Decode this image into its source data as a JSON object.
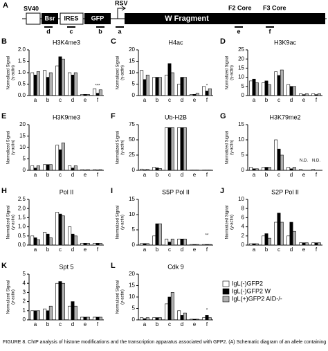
{
  "diagram": {
    "panel": "A",
    "labels": {
      "sv40": "SV40",
      "bsr": "Bsr",
      "ires": "IRES",
      "gfp": "GFP",
      "rsv": "RSV",
      "wfrag": "W Fragment",
      "f2": "F2 Core",
      "f3": "F3 Core"
    },
    "primers": [
      "d",
      "c",
      "b",
      "a",
      "e",
      "f"
    ]
  },
  "legend": [
    {
      "name": "IgL(-)GFP2",
      "color": "#ffffff"
    },
    {
      "name": "IgL(-)GFP2 W",
      "color": "#000000"
    },
    {
      "name": "IgL(+)GFP2 AID-/-",
      "color": "#b0b0b0"
    }
  ],
  "caption": "FIGURE 8. ChIP analysis of histone modifications and the transcription apparatus associated with GFP2. (A) Schematic diagram of an allele containing",
  "chart_data": [
    {
      "type": "bar",
      "panel": "B",
      "title": "H3K4me3",
      "ylabel": [
        "Normalized Signal",
        "(γ-actin)"
      ],
      "categories": [
        "a",
        "b",
        "c",
        "d",
        "e",
        "f"
      ],
      "ylim": [
        0,
        2
      ],
      "yticks": [
        {
          "value": 0,
          "label": "0.0"
        },
        0.5,
        {
          "value": 1,
          "label": "1.0"
        },
        1.5,
        {
          "value": 2,
          "label": "2.0"
        }
      ],
      "annotations": [
        "***"
      ],
      "series": [
        {
          "values": [
            1.0,
            1.1,
            1.3,
            1.0,
            0.05,
            0.3
          ]
        },
        {
          "values": [
            0.9,
            0.8,
            1.7,
            0.9,
            0.05,
            0.1
          ]
        },
        {
          "values": [
            1.05,
            1.0,
            1.6,
            1.0,
            0.05,
            0.25
          ]
        }
      ]
    },
    {
      "type": "bar",
      "panel": "C",
      "title": "H4ac",
      "ylabel": [
        "Normalized Signal",
        "(γ-actin)"
      ],
      "categories": [
        "a",
        "b",
        "c",
        "d",
        "e",
        "f"
      ],
      "ylim": [
        0,
        20
      ],
      "yticks": [
        0,
        5,
        10,
        15,
        20
      ],
      "annotations": [
        "*"
      ],
      "series": [
        {
          "values": [
            11,
            8,
            9,
            5,
            0.5,
            4
          ]
        },
        {
          "values": [
            7,
            8,
            14,
            8,
            0.5,
            2
          ]
        },
        {
          "values": [
            9,
            8,
            10,
            8,
            1,
            3
          ]
        }
      ]
    },
    {
      "type": "bar",
      "panel": "D",
      "title": "H3K9ac",
      "ylabel": [
        "Normalized Signal",
        "(γ-actin)"
      ],
      "categories": [
        "a",
        "b",
        "c",
        "d",
        "e",
        "f"
      ],
      "ylim": [
        0,
        25
      ],
      "yticks": [
        0,
        5,
        10,
        15,
        20,
        25
      ],
      "annotations": [],
      "series": [
        {
          "values": [
            8,
            7,
            13,
            6,
            1,
            1
          ]
        },
        {
          "values": [
            9,
            8,
            11,
            5,
            0.5,
            0.5
          ]
        },
        {
          "values": [
            7,
            6,
            14,
            5,
            1,
            1
          ]
        }
      ]
    },
    {
      "type": "bar",
      "panel": "E",
      "title": "H3K9me3",
      "ylabel": [
        "Normalized Signal",
        "(γ-actin)"
      ],
      "categories": [
        "a",
        "b",
        "c",
        "d",
        "e",
        "f"
      ],
      "ylim": [
        0,
        20
      ],
      "yticks": [
        0,
        5,
        10,
        15,
        20
      ],
      "annotations": [],
      "series": [
        {
          "values": [
            2,
            2.5,
            11,
            2,
            0.3,
            0.3
          ]
        },
        {
          "values": [
            1,
            2.5,
            9,
            1,
            0.2,
            0.2
          ]
        },
        {
          "values": [
            2,
            2.5,
            12,
            2,
            0.3,
            0.3
          ]
        }
      ]
    },
    {
      "type": "bar",
      "panel": "F",
      "title": "Ub-H2B",
      "ylabel": [
        "Normalized Signal",
        "(γ-actin)"
      ],
      "categories": [
        "a",
        "b",
        "c",
        "d",
        "e",
        "f"
      ],
      "ylim": [
        0,
        75
      ],
      "yticks": [
        0,
        25,
        50,
        75
      ],
      "annotations": [],
      "series": [
        {
          "values": [
            2,
            5,
            70,
            70,
            0.5,
            0.5
          ]
        },
        {
          "values": [
            1,
            4,
            70,
            70,
            0.5,
            0.5
          ]
        },
        {
          "values": [
            1.5,
            3,
            70,
            70,
            0.5,
            0.5
          ]
        }
      ]
    },
    {
      "type": "bar",
      "panel": "G",
      "title": "H3K79me2",
      "ylabel": [
        "Normalized Signal",
        "(γ-actin)"
      ],
      "categories": [
        "a",
        "b",
        "c",
        "d",
        "e",
        "f"
      ],
      "ylim": [
        0,
        15
      ],
      "yticks": [
        0,
        5,
        10,
        15
      ],
      "annotations": [
        "N.D.",
        "N.D."
      ],
      "series": [
        {
          "values": [
            1,
            1,
            10,
            1,
            0.3,
            0.3
          ]
        },
        {
          "values": [
            0.5,
            1,
            7,
            0.5,
            null,
            null
          ]
        },
        {
          "values": [
            0.5,
            1,
            5,
            1,
            null,
            null
          ]
        }
      ]
    },
    {
      "type": "bar",
      "panel": "H",
      "title": "Pol II",
      "ylabel": [
        "Normalized Signal",
        "(γ-actin)"
      ],
      "categories": [
        "a",
        "b",
        "c",
        "d",
        "e",
        "f"
      ],
      "ylim": [
        0,
        2.5
      ],
      "yticks": [
        {
          "value": 0,
          "label": "0.0"
        },
        0.5,
        {
          "value": 1,
          "label": "1.0"
        },
        1.5,
        {
          "value": 2,
          "label": "2.0"
        },
        2.5
      ],
      "annotations": [],
      "series": [
        {
          "values": [
            0.5,
            0.7,
            1.8,
            1.0,
            0.1,
            0.1
          ]
        },
        {
          "values": [
            0.4,
            0.6,
            1.7,
            0.6,
            0.1,
            0.1
          ]
        },
        {
          "values": [
            0.3,
            0.4,
            1.6,
            0.5,
            0.1,
            0.1
          ]
        }
      ]
    },
    {
      "type": "bar",
      "panel": "I",
      "title": "S5P Pol II",
      "ylabel": [
        "Normalized Signal",
        "(γ-actin)"
      ],
      "categories": [
        "a",
        "b",
        "c",
        "d",
        "e",
        "f"
      ],
      "ylim": [
        0,
        15
      ],
      "yticks": [
        0,
        5,
        10,
        15
      ],
      "annotations": [
        "**"
      ],
      "series": [
        {
          "values": [
            0.5,
            3,
            2,
            2,
            0.2,
            0.2
          ]
        },
        {
          "values": [
            0.5,
            7,
            1,
            2,
            0.2,
            0.2
          ]
        },
        {
          "values": [
            0.5,
            7,
            2,
            2,
            0.2,
            0.2
          ]
        }
      ]
    },
    {
      "type": "bar",
      "panel": "J",
      "title": "S2P Pol II",
      "ylabel": [
        "Normalized Signal",
        "(γ-actin)"
      ],
      "categories": [
        "a",
        "b",
        "c",
        "d",
        "e",
        "f"
      ],
      "ylim": [
        0,
        10
      ],
      "yticks": [
        0,
        2,
        4,
        6,
        8,
        10
      ],
      "annotations": [],
      "series": [
        {
          "values": [
            0.3,
            2,
            5,
            2,
            0.5,
            0.5
          ]
        },
        {
          "values": [
            0.3,
            2.5,
            7,
            5,
            0.5,
            0.5
          ]
        },
        {
          "values": [
            0.3,
            1.5,
            5,
            3,
            0.5,
            0.5
          ]
        }
      ]
    },
    {
      "type": "bar",
      "panel": "K",
      "title": "Spt 5",
      "ylabel": [
        "Normalized Signal",
        "(γ-actin)"
      ],
      "categories": [
        "a",
        "b",
        "c",
        "d",
        "e",
        "f"
      ],
      "ylim": [
        0,
        5
      ],
      "yticks": [
        0,
        1,
        2,
        3,
        4,
        5
      ],
      "annotations": [],
      "series": [
        {
          "values": [
            1,
            1.2,
            4,
            1.5,
            0.3,
            0.3
          ]
        },
        {
          "values": [
            1,
            1,
            4.2,
            2,
            0.3,
            0.3
          ]
        },
        {
          "values": [
            1,
            1.5,
            4,
            1.5,
            0.3,
            0.3
          ]
        }
      ]
    },
    {
      "type": "bar",
      "panel": "L",
      "title": "Cdk 9",
      "ylabel": [
        "Normalized Signal",
        "(γ-actin)"
      ],
      "categories": [
        "a",
        "b",
        "c",
        "d",
        "e",
        "f"
      ],
      "ylim": [
        0,
        20
      ],
      "yticks": [
        0,
        5,
        10,
        15,
        20
      ],
      "annotations": [
        "*"
      ],
      "series": [
        {
          "values": [
            1,
            1,
            7,
            4,
            0.3,
            1
          ]
        },
        {
          "values": [
            0.5,
            1,
            10,
            2,
            0.3,
            2
          ]
        },
        {
          "values": [
            1,
            1,
            12,
            3,
            0.3,
            1
          ]
        }
      ]
    }
  ]
}
